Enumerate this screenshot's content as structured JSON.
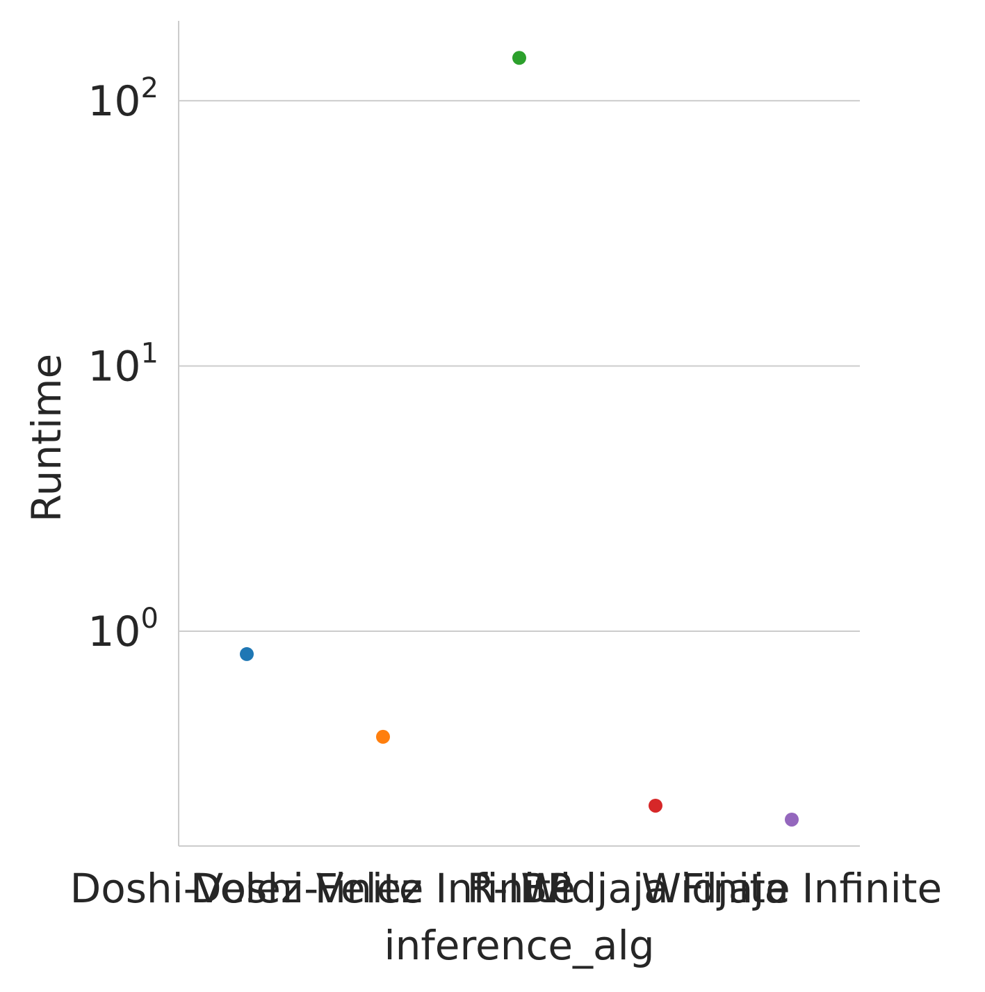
{
  "chart_data": {
    "type": "scatter",
    "xlabel": "inference_alg",
    "ylabel": "Runtime",
    "y_scale": "log",
    "ylim": [
      0.155,
      200
    ],
    "grid": "horizontal",
    "categories": [
      "Doshi-Velez Finite",
      "Doshi-Velez Infinite",
      "R-IBP",
      "Widjaja Finite",
      "Widjaja Infinite"
    ],
    "values": [
      0.82,
      0.4,
      145,
      0.22,
      0.195
    ],
    "colors": [
      "#1f77b4",
      "#ff7f0e",
      "#2ca02c",
      "#d62728",
      "#9467bd"
    ],
    "yticks": [
      {
        "value": 1,
        "base": "10",
        "exp": "0"
      },
      {
        "value": 10,
        "base": "10",
        "exp": "1"
      },
      {
        "value": 100,
        "base": "10",
        "exp": "2"
      }
    ]
  }
}
